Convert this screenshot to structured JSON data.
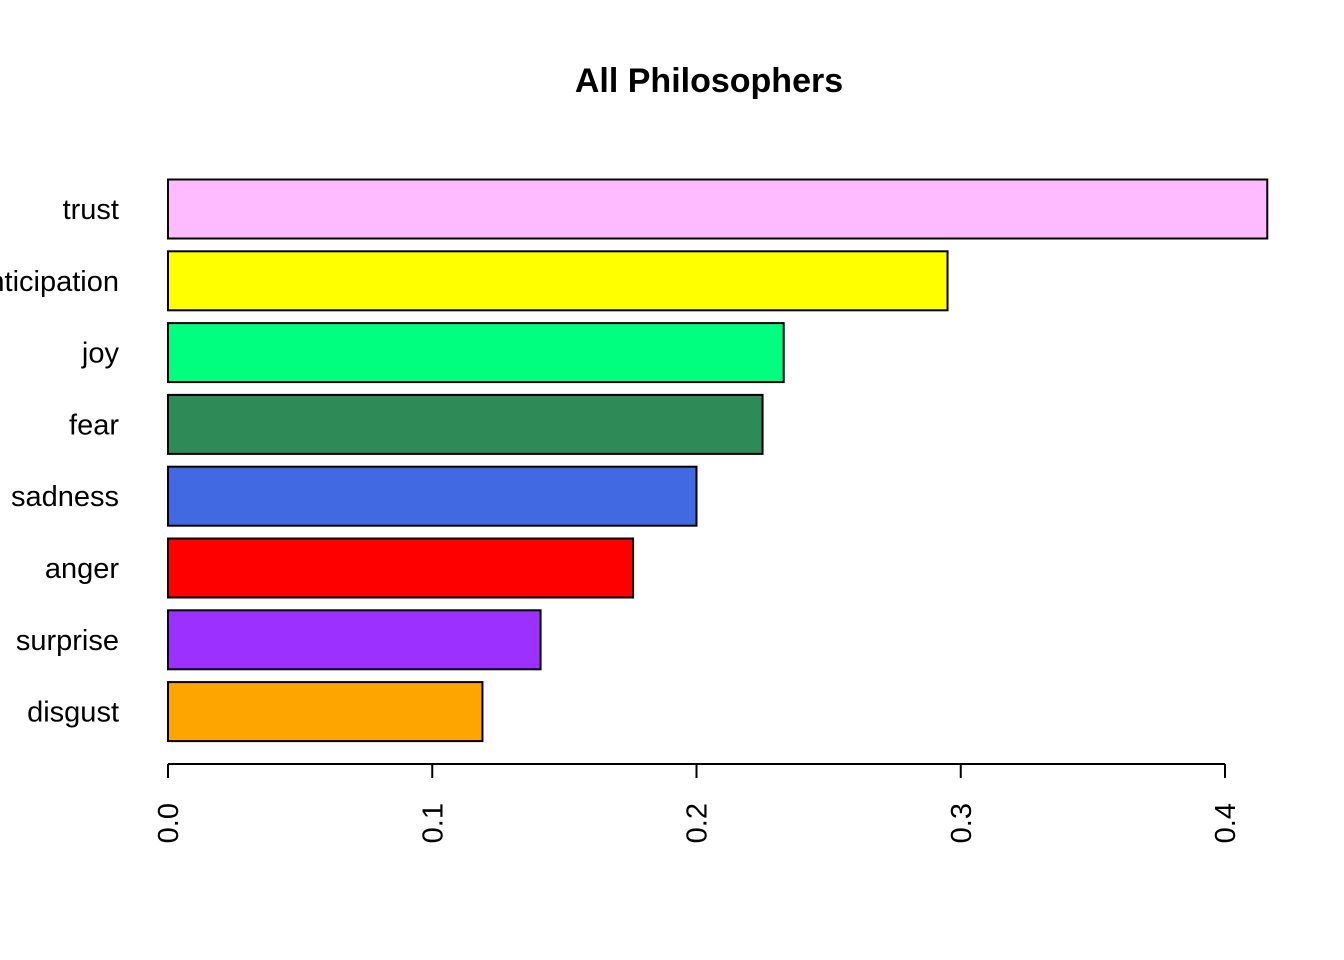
{
  "chart_data": {
    "type": "bar",
    "orientation": "horizontal",
    "title": "All Philosophers",
    "xlabel": "",
    "ylabel": "",
    "categories": [
      "disgust",
      "surprise",
      "anger",
      "sadness",
      "fear",
      "joy",
      "anticipation",
      "trust"
    ],
    "values": [
      0.119,
      0.141,
      0.176,
      0.2,
      0.225,
      0.233,
      0.295,
      0.416
    ],
    "colors": [
      "#FFA500",
      "#9B30FF",
      "#FF0000",
      "#4169E1",
      "#2E8B57",
      "#00FF7F",
      "#FFFF00",
      "#FFBBFF"
    ],
    "xlim": [
      0,
      0.4
    ],
    "ticks": [
      0.0,
      0.1,
      0.2,
      0.3,
      0.4
    ],
    "tick_labels": [
      "0.0",
      "0.1",
      "0.2",
      "0.3",
      "0.4"
    ],
    "grid": false,
    "legend": "none"
  }
}
